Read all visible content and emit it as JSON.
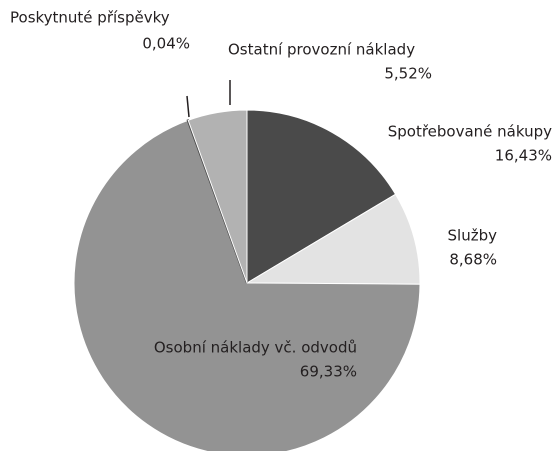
{
  "chart_data": {
    "type": "pie",
    "categories": [
      "Spotřebované nákupy",
      "Služby",
      "Osobní náklady vč. odvodů",
      "Poskytnuté příspěvky",
      "Ostatní provozní náklady"
    ],
    "values": [
      16.43,
      8.68,
      69.33,
      0.04,
      5.52
    ],
    "value_labels": [
      "16,43%",
      "8,68%",
      "69,33%",
      "0,04%",
      "5,52%"
    ],
    "colors": [
      "#4a4a4a",
      "#e3e3e3",
      "#939393",
      "#4a4a4a",
      "#b2b2b2"
    ]
  }
}
